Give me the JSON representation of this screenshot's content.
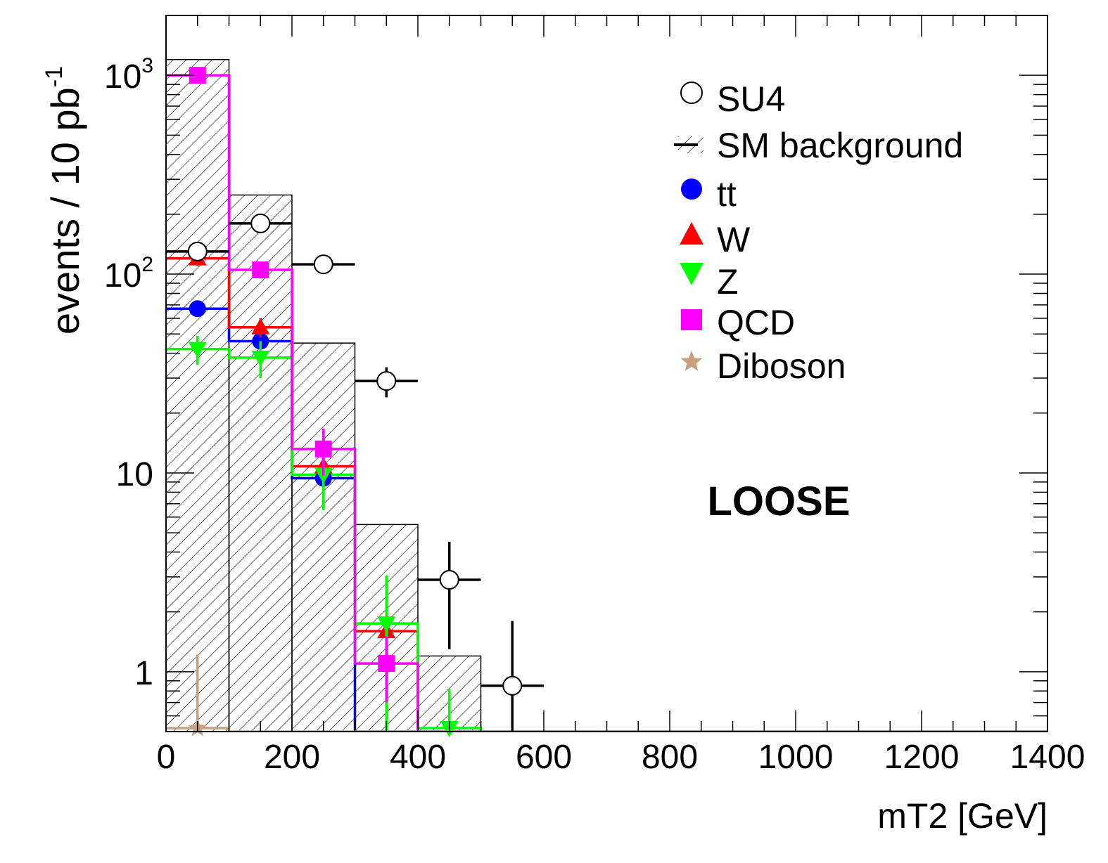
{
  "chart_data": {
    "type": "histogram",
    "x_scale": "linear",
    "y_scale": "log",
    "xlabel": "mT2 [GeV]",
    "ylabel_main": "events / 10 pb",
    "ylabel_sup": "-1",
    "xlim": [
      0,
      1400
    ],
    "ylim": [
      0.5,
      2000
    ],
    "x_ticks": [
      0,
      200,
      400,
      600,
      800,
      1000,
      1200,
      1400
    ],
    "x_tick_labels": [
      "0",
      "200",
      "400",
      "600",
      "800",
      "1000",
      "1200",
      "1400"
    ],
    "y_ticks": [
      {
        "value": 1,
        "base": "1",
        "exp": ""
      },
      {
        "value": 10,
        "base": "10",
        "exp": ""
      },
      {
        "value": 100,
        "base": "10",
        "exp": "2"
      },
      {
        "value": 1000,
        "base": "10",
        "exp": "3"
      }
    ],
    "bin_edges": [
      0,
      100,
      200,
      300,
      400,
      500,
      600,
      700,
      800,
      900,
      1000,
      1100,
      1200,
      1300,
      1400
    ],
    "annotation": "LOOSE",
    "sm_background": {
      "name": "SM background",
      "values": [
        1200,
        250,
        45,
        5.5,
        1.2,
        0,
        0,
        0,
        0,
        0,
        0,
        0,
        0,
        0
      ]
    },
    "su4": {
      "name": "SU4",
      "points": [
        {
          "x": 50,
          "y": 130,
          "err": 10
        },
        {
          "x": 150,
          "y": 180,
          "err": 12
        },
        {
          "x": 250,
          "y": 112,
          "err": 9
        },
        {
          "x": 350,
          "y": 29,
          "err": 5
        },
        {
          "x": 450,
          "y": 2.9,
          "err": 1.6
        },
        {
          "x": 550,
          "y": 0.85,
          "err": 0.95
        }
      ]
    },
    "series": [
      {
        "name": "tt",
        "color": "#0000ff",
        "marker": "circle",
        "values": [
          67,
          46,
          9.4,
          0,
          0,
          0,
          0,
          0,
          0,
          0,
          0,
          0,
          0,
          0
        ],
        "points": [
          {
            "x": 50,
            "y": 67,
            "err": 6
          },
          {
            "x": 150,
            "y": 46,
            "err": 5
          },
          {
            "x": 250,
            "y": 9.4,
            "err": 2
          }
        ]
      },
      {
        "name": "W",
        "color": "#ff0000",
        "marker": "triangle-up",
        "values": [
          120,
          54,
          10.8,
          1.6,
          0,
          0,
          0,
          0,
          0,
          0,
          0,
          0,
          0,
          0
        ],
        "points": [
          {
            "x": 50,
            "y": 120,
            "err": 10
          },
          {
            "x": 150,
            "y": 54,
            "err": 6
          },
          {
            "x": 250,
            "y": 10.8,
            "err": 2
          },
          {
            "x": 350,
            "y": 1.6,
            "err": 0.3
          }
        ]
      },
      {
        "name": "Z",
        "color": "#00ff00",
        "marker": "triangle-down",
        "values": [
          42,
          38,
          9.8,
          1.75,
          0.52,
          0,
          0,
          0,
          0,
          0,
          0,
          0,
          0,
          0
        ],
        "points": [
          {
            "x": 50,
            "y": 42,
            "err": 7
          },
          {
            "x": 150,
            "y": 38,
            "err": 8
          },
          {
            "x": 250,
            "y": 9.8,
            "err": 3.3
          },
          {
            "x": 350,
            "y": 1.75,
            "err": 1.3
          },
          {
            "x": 450,
            "y": 0.52,
            "err": 0.3
          }
        ]
      },
      {
        "name": "QCD",
        "color": "#ff00ff",
        "marker": "square",
        "values": [
          1000,
          105,
          13.2,
          1.1,
          0,
          0,
          0,
          0,
          0,
          0,
          0,
          0,
          0,
          0
        ],
        "points": [
          {
            "x": 50,
            "y": 1000,
            "err": 40
          },
          {
            "x": 150,
            "y": 105,
            "err": 10
          },
          {
            "x": 250,
            "y": 13.2,
            "err": 3.5
          },
          {
            "x": 350,
            "y": 1.1,
            "err": 0.4
          }
        ]
      },
      {
        "name": "Diboson",
        "color": "#c8a080",
        "marker": "star",
        "values": [
          0.52,
          0,
          0,
          0,
          0,
          0,
          0,
          0,
          0,
          0,
          0,
          0,
          0,
          0
        ],
        "points": [
          {
            "x": 50,
            "y": 0.52,
            "err": 0.7
          }
        ]
      }
    ]
  }
}
